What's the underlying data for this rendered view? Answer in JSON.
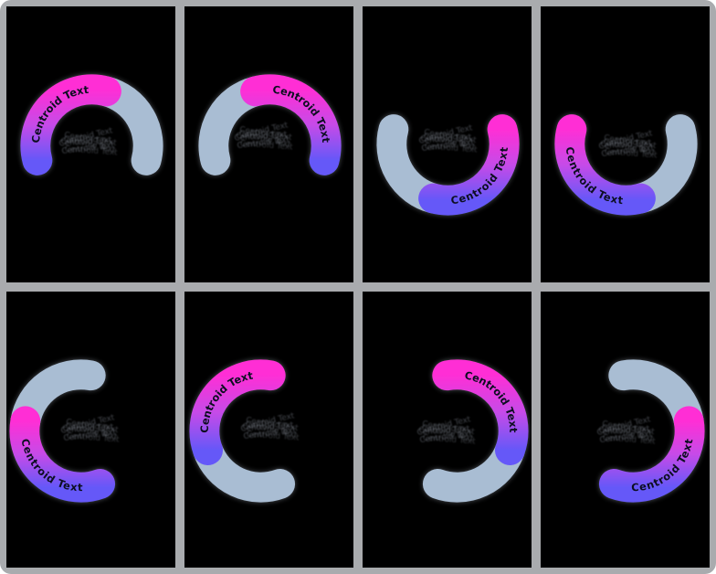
{
  "frame": {
    "background": "#a9abae",
    "panel_background": "#000000",
    "corner_radius": 12,
    "rows": 2,
    "cols": 4
  },
  "labels": {
    "arc_text": "Centroid Text",
    "overlap_text": "Centroid Text"
  },
  "colors": {
    "gradient_start": "#ff2ed5",
    "gradient_mid": "#c64be8",
    "gradient_end": "#6558f8",
    "muted_segment": "#a9bdd3",
    "arc_label": "#0c1120",
    "overlap_smudge": "#aeb6c4",
    "halo": "#9aa2ae"
  },
  "chart_data": [
    {
      "type": "gauge",
      "panel": 1,
      "orientation": "open-down",
      "center": [
        94,
        152
      ],
      "ring_radius": 62,
      "ring_thickness": 33,
      "segments": {
        "muted": {
          "from": 75,
          "to": -15,
          "sweep_deg": 90
        },
        "highlight": {
          "from": 195,
          "to": 75,
          "sweep_deg": 120
        }
      },
      "label_arc": {
        "from": 193,
        "to": 77
      },
      "smudge_at": [
        90,
        150
      ]
    },
    {
      "type": "gauge",
      "panel": 2,
      "orientation": "open-down",
      "center": [
        94,
        152
      ],
      "ring_radius": 62,
      "ring_thickness": 33,
      "segments": {
        "muted": {
          "from": 195,
          "to": 105,
          "sweep_deg": 90
        },
        "highlight": {
          "from": 105,
          "to": -15,
          "sweep_deg": 120
        }
      },
      "label_arc": {
        "from": 103,
        "to": -13
      },
      "smudge_at": [
        87,
        144
      ]
    },
    {
      "type": "gauge",
      "panel": 3,
      "orientation": "open-up",
      "center": [
        94,
        150
      ],
      "ring_radius": 62,
      "ring_thickness": 33,
      "segments": {
        "muted": {
          "from": 165,
          "to": 255,
          "sweep_deg": 90
        },
        "highlight": {
          "from": 255,
          "to": 375,
          "sweep_deg": 120
        }
      },
      "label_arc": {
        "from": 257,
        "to": 373
      },
      "smudge_at": [
        94,
        147
      ]
    },
    {
      "type": "gauge",
      "panel": 4,
      "orientation": "open-up",
      "center": [
        94,
        150
      ],
      "ring_radius": 62,
      "ring_thickness": 33,
      "segments": {
        "muted": {
          "from": 285,
          "to": 375,
          "sweep_deg": 90
        },
        "highlight": {
          "from": 165,
          "to": 285,
          "sweep_deg": 120
        }
      },
      "label_arc": {
        "from": 167,
        "to": 283
      },
      "smudge_at": [
        96,
        153
      ]
    },
    {
      "type": "gauge",
      "panel": 5,
      "orientation": "open-right",
      "center": [
        82,
        152
      ],
      "ring_radius": 62,
      "ring_thickness": 33,
      "segments": {
        "muted": {
          "from": 80,
          "to": 170,
          "sweep_deg": 90
        },
        "highlight": {
          "from": 170,
          "to": 290,
          "sweep_deg": 120
        }
      },
      "label_arc": {
        "from": 172,
        "to": 288
      },
      "smudge_at": [
        92,
        152
      ]
    },
    {
      "type": "gauge",
      "panel": 6,
      "orientation": "open-right",
      "center": [
        84,
        152
      ],
      "ring_radius": 62,
      "ring_thickness": 33,
      "segments": {
        "muted": {
          "from": 200,
          "to": 290,
          "sweep_deg": 90
        },
        "highlight": {
          "from": 200,
          "to": 80,
          "sweep_deg": 120
        }
      },
      "label_arc": {
        "from": 198,
        "to": 82
      },
      "smudge_at": [
        94,
        150
      ]
    },
    {
      "type": "gauge",
      "panel": 7,
      "orientation": "open-left",
      "center": [
        104,
        152
      ],
      "ring_radius": 62,
      "ring_thickness": 33,
      "segments": {
        "muted": {
          "from": -20,
          "to": -110,
          "sweep_deg": 90
        },
        "highlight": {
          "from": 100,
          "to": -20,
          "sweep_deg": 120
        }
      },
      "label_arc": {
        "from": 98,
        "to": -18
      },
      "smudge_at": [
        92,
        154
      ]
    },
    {
      "type": "gauge",
      "panel": 8,
      "orientation": "open-left",
      "center": [
        102,
        152
      ],
      "ring_radius": 62,
      "ring_thickness": 33,
      "segments": {
        "muted": {
          "from": 100,
          "to": 10,
          "sweep_deg": 90
        },
        "highlight": {
          "from": 10,
          "to": -110,
          "sweep_deg": 120
        }
      },
      "label_arc": {
        "from": -108,
        "to": 8
      },
      "smudge_at": [
        94,
        154
      ]
    }
  ]
}
